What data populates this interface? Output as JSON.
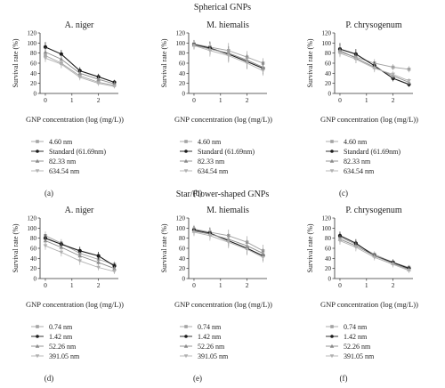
{
  "figure": {
    "section_titles": [
      "Spherical GNPs",
      "Star/Flower-shaped GNPs"
    ],
    "series_colors": [
      "#a3a3a3",
      "#1a1a1a",
      "#8a8a8a",
      "#b0b0b0"
    ],
    "series_markers": [
      "square",
      "circle",
      "triangle-up",
      "triangle-down"
    ]
  },
  "chart_data": [
    {
      "type": "line",
      "panel": "(a)",
      "title": "A. niger",
      "xlabel": "GNP concentration (log (mg/L))",
      "ylabel": "Survival rate (%)",
      "xlim": [
        -0.2,
        2.75
      ],
      "ylim": [
        0,
        120
      ],
      "xticks": [
        0,
        1,
        2
      ],
      "yticks": [
        0,
        20,
        40,
        60,
        80,
        100,
        120
      ],
      "x": [
        0,
        0.6,
        1.3,
        2.0,
        2.6
      ],
      "series": [
        {
          "name": "4.60 nm",
          "values": [
            75,
            60,
            35,
            22,
            16
          ],
          "errors": [
            10,
            8,
            6,
            5,
            4
          ]
        },
        {
          "name": "Standard (61.69nm)",
          "values": [
            92,
            78,
            45,
            33,
            22
          ],
          "errors": [
            10,
            8,
            7,
            6,
            5
          ]
        },
        {
          "name": "82.33 nm",
          "values": [
            82,
            68,
            40,
            28,
            19
          ],
          "errors": [
            9,
            8,
            6,
            6,
            5
          ]
        },
        {
          "name": "634.54 nm",
          "values": [
            70,
            58,
            32,
            20,
            14
          ],
          "errors": [
            8,
            8,
            6,
            5,
            4
          ]
        }
      ]
    },
    {
      "type": "line",
      "panel": "(b)",
      "title": "M. hiemalis",
      "xlabel": "GNP concentration (log (mg/L))",
      "ylabel": "Survival rate (%)",
      "xlim": [
        -0.2,
        2.75
      ],
      "ylim": [
        0,
        120
      ],
      "xticks": [
        0,
        1,
        2
      ],
      "yticks": [
        0,
        20,
        40,
        60,
        80,
        100,
        120
      ],
      "x": [
        0,
        0.6,
        1.3,
        2.0,
        2.6
      ],
      "series": [
        {
          "name": "4.60 nm",
          "values": [
            98,
            92,
            85,
            72,
            60
          ],
          "errors": [
            8,
            12,
            15,
            12,
            10
          ]
        },
        {
          "name": "Standard (61.69nm)",
          "values": [
            97,
            90,
            78,
            63,
            50
          ],
          "errors": [
            8,
            12,
            15,
            14,
            12
          ]
        },
        {
          "name": "82.33 nm",
          "values": [
            96,
            88,
            80,
            66,
            52
          ],
          "errors": [
            8,
            12,
            14,
            12,
            12
          ]
        },
        {
          "name": "634.54 nm",
          "values": [
            95,
            85,
            75,
            60,
            45
          ],
          "errors": [
            8,
            12,
            14,
            12,
            10
          ]
        }
      ]
    },
    {
      "type": "line",
      "panel": "(c)",
      "title": "P. chrysogenum",
      "xlabel": "GNP concentration (log (mg/L))",
      "ylabel": "Survival rate (%)",
      "xlim": [
        -0.2,
        2.75
      ],
      "ylim": [
        0,
        120
      ],
      "xticks": [
        0,
        1,
        2
      ],
      "yticks": [
        0,
        20,
        40,
        60,
        80,
        100,
        120
      ],
      "x": [
        0,
        0.6,
        1.3,
        2.0,
        2.6
      ],
      "series": [
        {
          "name": "4.60 nm",
          "values": [
            82,
            72,
            60,
            52,
            48
          ],
          "errors": [
            8,
            8,
            8,
            6,
            6
          ]
        },
        {
          "name": "Standard (61.69nm)",
          "values": [
            88,
            78,
            55,
            30,
            18
          ],
          "errors": [
            12,
            10,
            8,
            6,
            5
          ]
        },
        {
          "name": "82.33 nm",
          "values": [
            85,
            70,
            52,
            35,
            22
          ],
          "errors": [
            10,
            10,
            8,
            6,
            5
          ]
        },
        {
          "name": "634.54 nm",
          "values": [
            80,
            68,
            50,
            38,
            25
          ],
          "errors": [
            8,
            8,
            8,
            6,
            5
          ]
        }
      ]
    },
    {
      "type": "line",
      "panel": "(d)",
      "title": "A. niger",
      "xlabel": "GNP concentration (log (mg/L))",
      "ylabel": "Survival rate (%)",
      "xlim": [
        -0.2,
        2.75
      ],
      "ylim": [
        0,
        120
      ],
      "xticks": [
        0,
        1,
        2
      ],
      "yticks": [
        0,
        20,
        40,
        60,
        80,
        100,
        120
      ],
      "x": [
        0,
        0.6,
        1.3,
        2.0,
        2.6
      ],
      "series": [
        {
          "name": "0.74 nm",
          "values": [
            85,
            70,
            50,
            38,
            28
          ],
          "errors": [
            8,
            8,
            8,
            6,
            6
          ]
        },
        {
          "name": "1.42 nm",
          "values": [
            80,
            68,
            55,
            45,
            25
          ],
          "errors": [
            8,
            6,
            8,
            8,
            6
          ]
        },
        {
          "name": "52.26 nm",
          "values": [
            75,
            62,
            45,
            32,
            20
          ],
          "errors": [
            8,
            8,
            8,
            6,
            5
          ]
        },
        {
          "name": "391.05 nm",
          "values": [
            65,
            52,
            35,
            22,
            14
          ],
          "errors": [
            8,
            8,
            8,
            6,
            5
          ]
        }
      ]
    },
    {
      "type": "line",
      "panel": "(e)",
      "title": "M. hiemalis",
      "xlabel": "GNP concentration (log (mg/L))",
      "ylabel": "Survival rate (%)",
      "xlim": [
        -0.2,
        2.75
      ],
      "ylim": [
        0,
        120
      ],
      "xticks": [
        0,
        1,
        2
      ],
      "yticks": [
        0,
        20,
        40,
        60,
        80,
        100,
        120
      ],
      "x": [
        0,
        0.6,
        1.3,
        2.0,
        2.6
      ],
      "series": [
        {
          "name": "0.74 nm",
          "values": [
            98,
            92,
            85,
            72,
            55
          ],
          "errors": [
            8,
            10,
            12,
            12,
            12
          ]
        },
        {
          "name": "1.42 nm",
          "values": [
            96,
            90,
            75,
            60,
            45
          ],
          "errors": [
            8,
            10,
            12,
            12,
            10
          ]
        },
        {
          "name": "52.26 nm",
          "values": [
            94,
            88,
            78,
            65,
            50
          ],
          "errors": [
            8,
            10,
            12,
            12,
            10
          ]
        },
        {
          "name": "391.05 nm",
          "values": [
            92,
            85,
            72,
            58,
            42
          ],
          "errors": [
            8,
            10,
            12,
            12,
            10
          ]
        }
      ]
    },
    {
      "type": "line",
      "panel": "(f)",
      "title": "P. chrysogenum",
      "xlabel": "GNP concentration (log (mg/L))",
      "ylabel": "Survival rate (%)",
      "xlim": [
        -0.2,
        2.75
      ],
      "ylim": [
        0,
        120
      ],
      "xticks": [
        0,
        1,
        2
      ],
      "yticks": [
        0,
        20,
        40,
        60,
        80,
        100,
        120
      ],
      "x": [
        0,
        0.6,
        1.3,
        2.0,
        2.6
      ],
      "series": [
        {
          "name": "0.74 nm",
          "values": [
            82,
            68,
            48,
            32,
            22
          ],
          "errors": [
            8,
            8,
            6,
            6,
            5
          ]
        },
        {
          "name": "1.42 nm",
          "values": [
            85,
            70,
            45,
            32,
            20
          ],
          "errors": [
            8,
            8,
            6,
            6,
            5
          ]
        },
        {
          "name": "52.26 nm",
          "values": [
            78,
            65,
            45,
            30,
            18
          ],
          "errors": [
            8,
            8,
            6,
            6,
            5
          ]
        },
        {
          "name": "391.05 nm",
          "values": [
            75,
            62,
            42,
            28,
            16
          ],
          "errors": [
            8,
            8,
            6,
            6,
            5
          ]
        }
      ]
    }
  ]
}
